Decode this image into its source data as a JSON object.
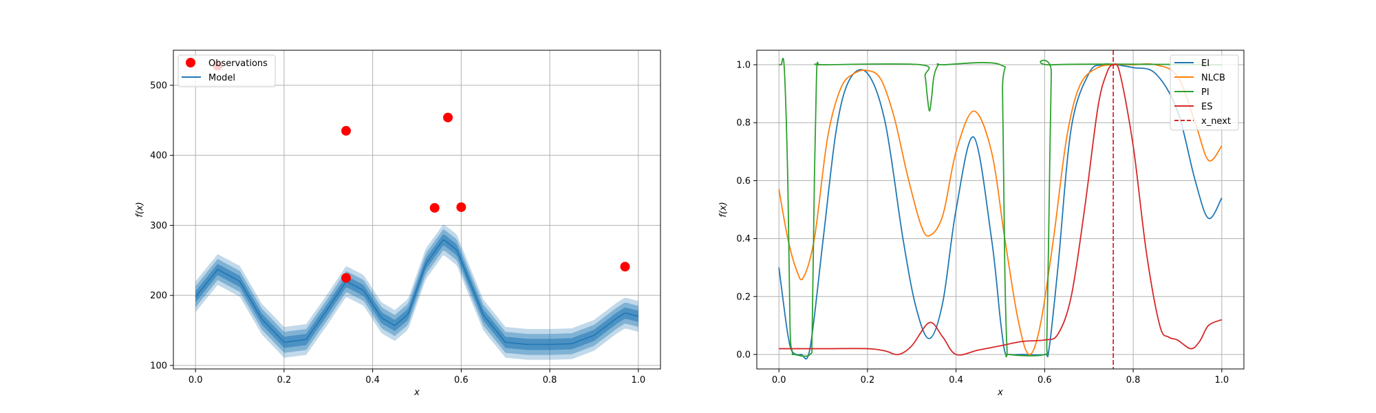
{
  "chart_data": [
    {
      "type": "line",
      "xlabel": "x",
      "ylabel": "f(x)",
      "xlim": [
        -0.05,
        1.05
      ],
      "ylim": [
        95,
        550
      ],
      "xticks": [
        "0.0",
        "0.2",
        "0.4",
        "0.6",
        "0.8",
        "1.0"
      ],
      "xtick_values": [
        0,
        0.2,
        0.4,
        0.6,
        0.8,
        1.0
      ],
      "yticks": [
        "100",
        "200",
        "300",
        "400",
        "500"
      ],
      "ytick_values": [
        100,
        200,
        300,
        400,
        500
      ],
      "grid": true,
      "legend_position": "top-left",
      "legend": [
        "Observations",
        "Model"
      ],
      "observations": {
        "name": "Observations",
        "color": "#ff0000",
        "x": [
          0.05,
          0.34,
          0.34,
          0.54,
          0.57,
          0.6,
          0.97
        ],
        "y": [
          528,
          435,
          225,
          325,
          454,
          326,
          241
        ]
      },
      "model": {
        "name": "Model",
        "color": "#1f77b4",
        "x": [
          0,
          0.05,
          0.1,
          0.15,
          0.2,
          0.25,
          0.3,
          0.34,
          0.38,
          0.42,
          0.45,
          0.48,
          0.52,
          0.56,
          0.59,
          0.62,
          0.65,
          0.7,
          0.75,
          0.8,
          0.85,
          0.9,
          0.95,
          0.97,
          1.0
        ],
        "y": [
          198,
          237,
          220,
          166,
          133,
          137,
          182,
          220,
          207,
          168,
          157,
          173,
          245,
          280,
          265,
          218,
          172,
          133,
          130,
          130,
          131,
          143,
          167,
          175,
          170
        ],
        "band_halfwidths": [
          8,
          15,
          22
        ]
      }
    },
    {
      "type": "line",
      "xlabel": "x",
      "ylabel": "f(x)",
      "xlim": [
        -0.05,
        1.05
      ],
      "ylim": [
        -0.05,
        1.05
      ],
      "xticks": [
        "0.0",
        "0.2",
        "0.4",
        "0.6",
        "0.8",
        "1.0"
      ],
      "xtick_values": [
        0,
        0.2,
        0.4,
        0.6,
        0.8,
        1.0
      ],
      "yticks": [
        "0.0",
        "0.2",
        "0.4",
        "0.6",
        "0.8",
        "1.0"
      ],
      "ytick_values": [
        0,
        0.2,
        0.4,
        0.6,
        0.8,
        1.0
      ],
      "grid": true,
      "legend_position": "top-right",
      "legend": [
        "EI",
        "NLCB",
        "PI",
        "ES",
        "x_next"
      ],
      "series": [
        {
          "name": "EI",
          "color": "#1f77b4",
          "x": [
            0,
            0.01,
            0.02,
            0.03,
            0.05,
            0.07,
            0.1,
            0.13,
            0.16,
            0.2,
            0.24,
            0.28,
            0.31,
            0.34,
            0.37,
            0.4,
            0.44,
            0.48,
            0.5,
            0.51,
            0.52,
            0.55,
            0.6,
            0.61,
            0.63,
            0.66,
            0.7,
            0.73,
            0.76,
            0.8,
            0.85,
            0.9,
            0.94,
            0.97,
            1.0
          ],
          "y": [
            0.3,
            0.18,
            0.07,
            0.01,
            0.0,
            0.02,
            0.4,
            0.78,
            0.95,
            0.97,
            0.8,
            0.4,
            0.16,
            0.055,
            0.18,
            0.5,
            0.75,
            0.4,
            0.12,
            0.01,
            0.0,
            0.0,
            0.0,
            0.02,
            0.3,
            0.78,
            0.97,
            1.0,
            1.0,
            0.99,
            0.97,
            0.84,
            0.6,
            0.47,
            0.54
          ]
        },
        {
          "name": "NLCB",
          "color": "#ff7f0e",
          "x": [
            0,
            0.02,
            0.04,
            0.055,
            0.08,
            0.11,
            0.14,
            0.17,
            0.2,
            0.23,
            0.26,
            0.29,
            0.32,
            0.34,
            0.37,
            0.4,
            0.44,
            0.48,
            0.51,
            0.54,
            0.565,
            0.59,
            0.62,
            0.65,
            0.68,
            0.72,
            0.76,
            0.8,
            0.85,
            0.9,
            0.94,
            0.97,
            1.0
          ],
          "y": [
            0.57,
            0.4,
            0.29,
            0.265,
            0.4,
            0.75,
            0.92,
            0.97,
            0.98,
            0.95,
            0.82,
            0.62,
            0.45,
            0.41,
            0.48,
            0.7,
            0.84,
            0.7,
            0.4,
            0.12,
            0.0,
            0.1,
            0.4,
            0.75,
            0.93,
            0.99,
            1.0,
            1.0,
            1.0,
            0.96,
            0.8,
            0.67,
            0.72
          ]
        },
        {
          "name": "PI",
          "color": "#2ca02c",
          "x": [
            0,
            0.005,
            0.012,
            0.02,
            0.025,
            0.03,
            0.035,
            0.07,
            0.075,
            0.08,
            0.085,
            0.09,
            0.1,
            0.32,
            0.33,
            0.335,
            0.34,
            0.345,
            0.35,
            0.36,
            0.37,
            0.5,
            0.505,
            0.51,
            0.515,
            0.52,
            0.6,
            0.605,
            0.61,
            0.615,
            0.62,
            1.0
          ],
          "y": [
            1.0,
            1.0,
            0.99,
            0.6,
            0.1,
            0.01,
            0.0,
            0.0,
            0.08,
            0.6,
            0.97,
            1.0,
            1.0,
            1.0,
            0.96,
            0.89,
            0.84,
            0.89,
            0.96,
            1.0,
            1.0,
            1.0,
            0.9,
            0.3,
            0.02,
            0.0,
            0.0,
            0.05,
            0.5,
            0.97,
            1.0,
            1.0
          ]
        },
        {
          "name": "ES",
          "color": "#d62728",
          "x": [
            0,
            0.1,
            0.2,
            0.24,
            0.27,
            0.3,
            0.34,
            0.37,
            0.4,
            0.45,
            0.5,
            0.55,
            0.6,
            0.63,
            0.66,
            0.69,
            0.72,
            0.74,
            0.755,
            0.77,
            0.8,
            0.83,
            0.86,
            0.88,
            0.9,
            0.93,
            0.95,
            0.97,
            1.0
          ],
          "y": [
            0.02,
            0.02,
            0.02,
            0.012,
            0.0,
            0.03,
            0.11,
            0.06,
            0.0,
            0.015,
            0.03,
            0.045,
            0.05,
            0.07,
            0.2,
            0.5,
            0.85,
            0.97,
            1.0,
            0.97,
            0.72,
            0.35,
            0.1,
            0.06,
            0.05,
            0.02,
            0.045,
            0.1,
            0.12
          ]
        }
      ],
      "x_next": {
        "name": "x_next",
        "color": "#d62728",
        "x": 0.755
      }
    }
  ]
}
